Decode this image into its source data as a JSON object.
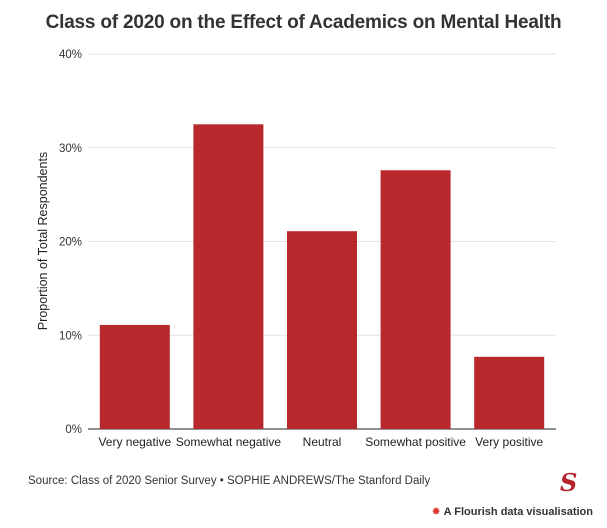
{
  "colors": {
    "bar": "#b7292d",
    "grid": "#e3e3e3",
    "axis": "#222222"
  },
  "chart_data": {
    "type": "bar",
    "title": "Class of 2020 on the Effect of Academics on Mental Health",
    "xlabel": "",
    "ylabel": "Proportion of Total Respondents",
    "categories": [
      "Very negative",
      "Somewhat negative",
      "Neutral",
      "Somewhat positive",
      "Very positive"
    ],
    "values": [
      11.1,
      32.5,
      21.1,
      27.6,
      7.7
    ],
    "ylim": [
      0,
      40
    ],
    "yticks": [
      0,
      10,
      20,
      30,
      40
    ],
    "ytick_labels": [
      "0%",
      "10%",
      "20%",
      "30%",
      "40%"
    ],
    "grid": true
  },
  "footer": {
    "source": "Source: Class of 2020 Senior Survey • SOPHIE ANDREWS/The Stanford Daily",
    "logo": "S",
    "flourish_icon": "flourish-star-icon",
    "flourish_label": "A Flourish data visualisation"
  }
}
